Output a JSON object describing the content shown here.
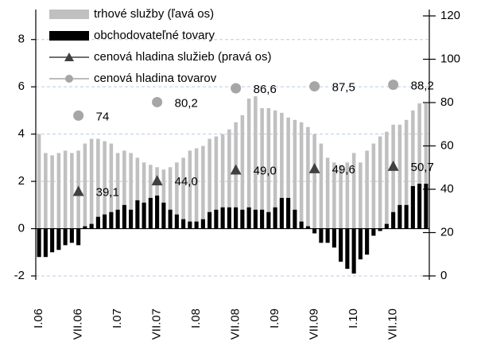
{
  "chart_data": {
    "type": "bar",
    "categories": [
      "I.06",
      null,
      null,
      null,
      null,
      null,
      "VII.06",
      null,
      null,
      null,
      null,
      null,
      "I.07",
      null,
      null,
      null,
      null,
      null,
      "VII.07",
      null,
      null,
      null,
      null,
      null,
      "I.08",
      null,
      null,
      null,
      null,
      null,
      "VII.08",
      null,
      null,
      null,
      null,
      null,
      "I.09",
      null,
      null,
      null,
      null,
      null,
      "VII.09",
      null,
      null,
      null,
      null,
      null,
      "I.10",
      null,
      null,
      null,
      null,
      null,
      "VII.10",
      null,
      null,
      null,
      null,
      null
    ],
    "series": [
      {
        "name": "trhové služby (ľavá os)",
        "type": "bar",
        "color": "#c0c0c0",
        "values": [
          4.0,
          3.2,
          3.1,
          3.2,
          3.3,
          3.2,
          3.3,
          3.6,
          3.8,
          3.8,
          3.7,
          3.6,
          3.2,
          3.3,
          3.2,
          3.0,
          2.8,
          2.7,
          2.6,
          2.5,
          2.6,
          2.8,
          3.0,
          3.3,
          3.4,
          3.5,
          3.8,
          3.9,
          4.0,
          4.2,
          4.5,
          4.8,
          5.5,
          5.6,
          5.1,
          5.1,
          5.0,
          4.9,
          4.7,
          4.6,
          4.5,
          4.3,
          4.0,
          3.6,
          3.0,
          2.8,
          2.7,
          2.8,
          3.2,
          2.8,
          3.3,
          3.6,
          3.9,
          4.1,
          4.4,
          4.4,
          4.6,
          5.0,
          5.3,
          5.3
        ]
      },
      {
        "name": "obchodovateľné tovary",
        "type": "bar",
        "color": "#000000",
        "values": [
          -1.2,
          -1.2,
          -1.0,
          -0.9,
          -0.7,
          -0.6,
          -0.7,
          0.1,
          0.2,
          0.5,
          0.6,
          0.7,
          0.8,
          1.0,
          0.8,
          1.2,
          1.1,
          1.3,
          1.4,
          1.1,
          0.8,
          0.6,
          0.4,
          0.3,
          0.3,
          0.4,
          0.7,
          0.8,
          0.9,
          0.9,
          0.9,
          0.8,
          0.9,
          0.8,
          0.8,
          0.7,
          0.9,
          1.3,
          1.3,
          0.8,
          0.3,
          0.1,
          -0.2,
          -0.6,
          -0.6,
          -0.8,
          -1.4,
          -1.7,
          -1.9,
          -1.3,
          -1.1,
          -0.3,
          -0.1,
          0.2,
          0.7,
          1.0,
          1.0,
          1.8,
          1.9,
          1.9
        ]
      },
      {
        "name": "cenová hladina služieb (pravá os)",
        "type": "scatter",
        "marker": "triangle",
        "axis": "y2",
        "color": "#404040",
        "values": [
          null,
          null,
          null,
          null,
          null,
          null,
          39.1,
          null,
          null,
          null,
          null,
          null,
          null,
          null,
          null,
          null,
          null,
          null,
          44.0,
          null,
          null,
          null,
          null,
          null,
          null,
          null,
          null,
          null,
          null,
          null,
          49.0,
          null,
          null,
          null,
          null,
          null,
          null,
          null,
          null,
          null,
          null,
          null,
          49.6,
          null,
          null,
          null,
          null,
          null,
          null,
          null,
          null,
          null,
          null,
          null,
          50.7,
          null,
          null,
          null,
          null,
          null
        ],
        "value_labels": [
          null,
          null,
          null,
          null,
          null,
          null,
          "39,1",
          null,
          null,
          null,
          null,
          null,
          null,
          null,
          null,
          null,
          null,
          null,
          "44,0",
          null,
          null,
          null,
          null,
          null,
          null,
          null,
          null,
          null,
          null,
          null,
          "49,0",
          null,
          null,
          null,
          null,
          null,
          null,
          null,
          null,
          null,
          null,
          null,
          "49,6",
          null,
          null,
          null,
          null,
          null,
          null,
          null,
          null,
          null,
          null,
          null,
          "50,7",
          null,
          null,
          null,
          null,
          null
        ]
      },
      {
        "name": "cenová hladina tovarov",
        "type": "scatter",
        "marker": "circle",
        "axis": "y2",
        "color": "#a6a6a6",
        "values": [
          null,
          null,
          null,
          null,
          null,
          null,
          74,
          null,
          null,
          null,
          null,
          null,
          null,
          null,
          null,
          null,
          null,
          null,
          80.2,
          null,
          null,
          null,
          null,
          null,
          null,
          null,
          null,
          null,
          null,
          null,
          86.6,
          null,
          null,
          null,
          null,
          null,
          null,
          null,
          null,
          null,
          null,
          null,
          87.5,
          null,
          null,
          null,
          null,
          null,
          null,
          null,
          null,
          null,
          null,
          null,
          88.2,
          null,
          null,
          null,
          null,
          null
        ],
        "value_labels": [
          null,
          null,
          null,
          null,
          null,
          null,
          "74",
          null,
          null,
          null,
          null,
          null,
          null,
          null,
          null,
          null,
          null,
          null,
          "80,2",
          null,
          null,
          null,
          null,
          null,
          null,
          null,
          null,
          null,
          null,
          null,
          "86,6",
          null,
          null,
          null,
          null,
          null,
          null,
          null,
          null,
          null,
          null,
          null,
          "87,5",
          null,
          null,
          null,
          null,
          null,
          null,
          null,
          null,
          null,
          null,
          null,
          "88,2",
          null,
          null,
          null,
          null,
          null
        ]
      }
    ],
    "ylim": [
      -2,
      9
    ],
    "yticks": [
      -2,
      0,
      2,
      4,
      6,
      8
    ],
    "y2lim": [
      0,
      120
    ],
    "y2ticks": [
      0,
      20,
      40,
      60,
      80,
      100,
      120
    ],
    "grid": true,
    "legend": "top-left"
  }
}
